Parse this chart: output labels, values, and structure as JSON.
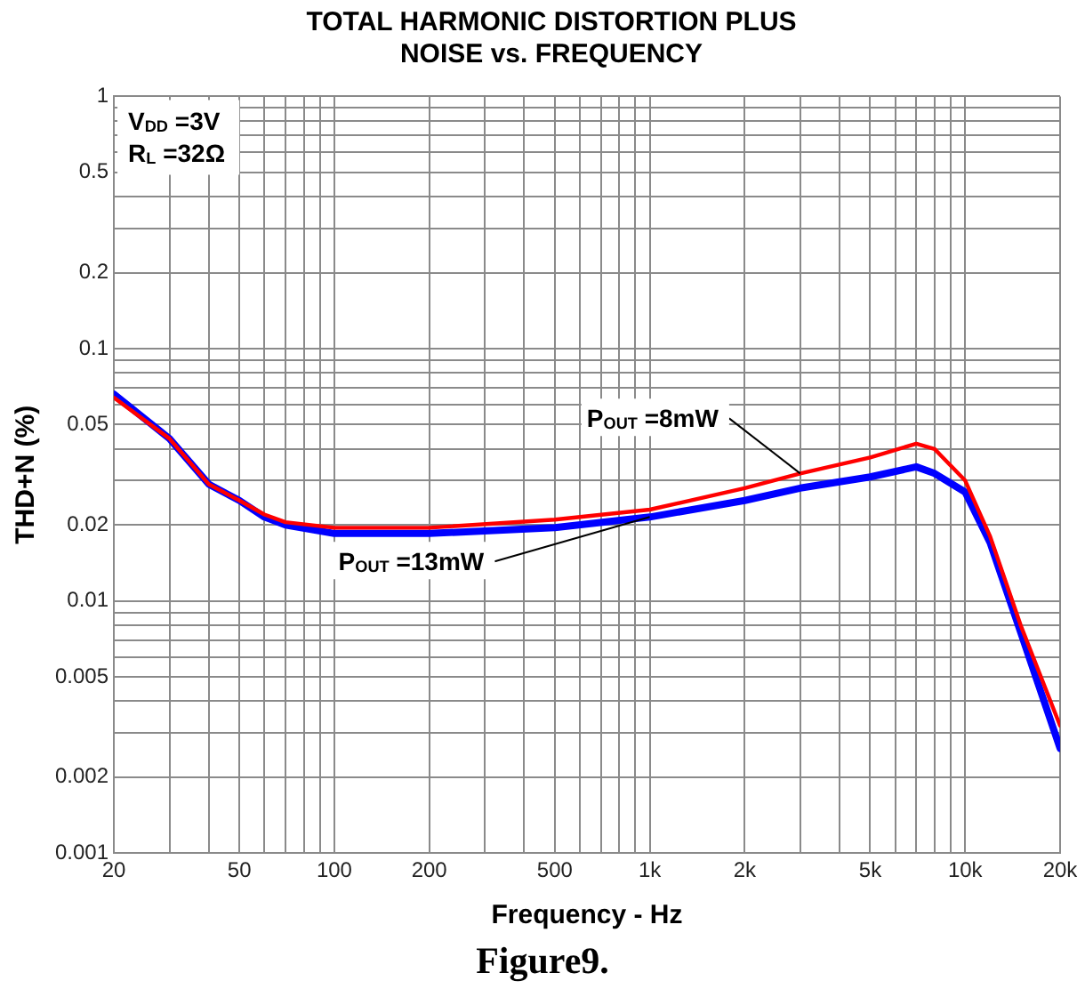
{
  "chart_data": {
    "type": "line",
    "title": "TOTAL HARMONIC DISTORTION PLUS NOISE vs. FREQUENCY",
    "xlabel": "Frequency - Hz",
    "ylabel": "THD+N (%)",
    "log": "xy",
    "grid": true,
    "legend": false,
    "marker": "none",
    "line_style": "solid",
    "xlim": [
      20,
      20000
    ],
    "ylim": [
      0.001,
      1
    ],
    "xticks": [
      20,
      {
        "value": 30,
        "label": null
      },
      {
        "value": 40,
        "label": null
      },
      50,
      {
        "value": 60,
        "label": null
      },
      {
        "value": 70,
        "label": null
      },
      {
        "value": 80,
        "label": null
      },
      {
        "value": 90,
        "label": null
      },
      100,
      200,
      {
        "value": 300,
        "label": null
      },
      {
        "value": 400,
        "label": null
      },
      500,
      {
        "value": 600,
        "label": null
      },
      {
        "value": 700,
        "label": null
      },
      {
        "value": 800,
        "label": null
      },
      {
        "value": 900,
        "label": null
      },
      {
        "value": 1000,
        "label": "1k"
      },
      {
        "value": 2000,
        "label": "2k"
      },
      {
        "value": 3000,
        "label": null
      },
      {
        "value": 4000,
        "label": null
      },
      {
        "value": 5000,
        "label": "5k"
      },
      {
        "value": 6000,
        "label": null
      },
      {
        "value": 7000,
        "label": null
      },
      {
        "value": 8000,
        "label": null
      },
      {
        "value": 9000,
        "label": null
      },
      {
        "value": 10000,
        "label": "10k"
      },
      {
        "value": 20000,
        "label": "20k"
      }
    ],
    "yticks": [
      0.001,
      0.002,
      {
        "value": 0.003,
        "label": null
      },
      {
        "value": 0.004,
        "label": null
      },
      0.005,
      {
        "value": 0.006,
        "label": null
      },
      {
        "value": 0.007,
        "label": null
      },
      {
        "value": 0.008,
        "label": null
      },
      {
        "value": 0.009,
        "label": null
      },
      0.01,
      0.02,
      {
        "value": 0.03,
        "label": null
      },
      {
        "value": 0.04,
        "label": null
      },
      0.05,
      {
        "value": 0.06,
        "label": null
      },
      {
        "value": 0.07,
        "label": null
      },
      {
        "value": 0.08,
        "label": null
      },
      {
        "value": 0.09,
        "label": null
      },
      0.1,
      0.2,
      {
        "value": 0.3,
        "label": null
      },
      {
        "value": 0.4,
        "label": null
      },
      0.5,
      {
        "value": 0.6,
        "label": null
      },
      {
        "value": 0.7,
        "label": null
      },
      {
        "value": 0.8,
        "label": null
      },
      {
        "value": 0.9,
        "label": null
      },
      1
    ],
    "x": [
      20,
      30,
      40,
      50,
      60,
      70,
      100,
      200,
      500,
      1000,
      2000,
      3000,
      5000,
      7000,
      8000,
      10000,
      12000,
      15000,
      20000
    ],
    "series": [
      {
        "name": "P$_{OUT}$ =8mW",
        "color": "#ff0000",
        "values": [
          0.064,
          0.044,
          0.029,
          0.025,
          0.022,
          0.0205,
          0.0195,
          0.0195,
          0.021,
          0.023,
          0.028,
          0.032,
          0.037,
          0.042,
          0.04,
          0.03,
          0.018,
          0.008,
          0.0032
        ]
      },
      {
        "name": "P$_{OUT}$ =13mW",
        "color": "#0000ff",
        "values": [
          0.066,
          0.044,
          0.029,
          0.025,
          0.0215,
          0.02,
          0.0185,
          0.0185,
          0.0195,
          0.0215,
          0.025,
          0.028,
          0.031,
          0.034,
          0.032,
          0.027,
          0.017,
          0.0075,
          0.0026
        ]
      }
    ],
    "annotations": [
      "V$_{DD}$ =3V",
      "R$_{L}$ =32Ω",
      "Figure9."
    ]
  }
}
